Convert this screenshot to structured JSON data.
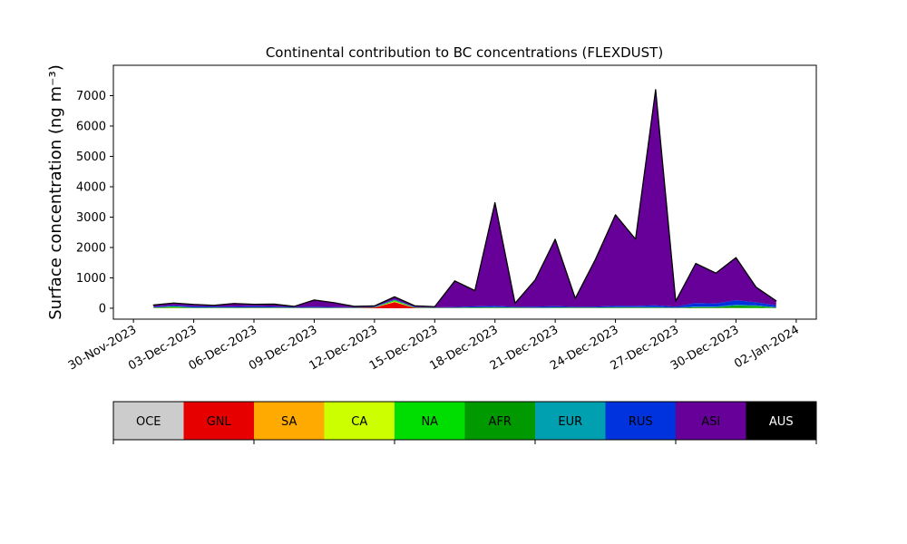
{
  "chart_data": {
    "type": "stacked_area",
    "title": "Continental contribution to BC concentrations (FLEXDUST)",
    "y_label": "Surface concentration (ng m⁻³)",
    "x": [
      "2023-12-01",
      "2023-12-02",
      "2023-12-03",
      "2023-12-04",
      "2023-12-05",
      "2023-12-06",
      "2023-12-07",
      "2023-12-08",
      "2023-12-09",
      "2023-12-10",
      "2023-12-11",
      "2023-12-12",
      "2023-12-13",
      "2023-12-14",
      "2023-12-15",
      "2023-12-16",
      "2023-12-17",
      "2023-12-18",
      "2023-12-19",
      "2023-12-20",
      "2023-12-21",
      "2023-12-22",
      "2023-12-23",
      "2023-12-24",
      "2023-12-25",
      "2023-12-26",
      "2023-12-27",
      "2023-12-28",
      "2023-12-29",
      "2023-12-30",
      "2023-12-31",
      "2024-01-01"
    ],
    "series": [
      {
        "name": "OCE",
        "color": "#cccccc",
        "values": [
          0,
          0,
          0,
          0,
          0,
          0,
          0,
          0,
          0,
          0,
          0,
          0,
          0,
          0,
          0,
          0,
          0,
          0,
          0,
          0,
          0,
          0,
          0,
          0,
          0,
          0,
          0,
          0,
          0,
          0,
          0,
          0
        ]
      },
      {
        "name": "GNL",
        "color": "#e60000",
        "values": [
          5,
          5,
          5,
          5,
          5,
          10,
          5,
          5,
          5,
          5,
          5,
          20,
          200,
          10,
          5,
          5,
          5,
          5,
          5,
          5,
          5,
          5,
          5,
          5,
          5,
          5,
          5,
          5,
          5,
          5,
          5,
          5
        ]
      },
      {
        "name": "SA",
        "color": "#ffaa00",
        "values": [
          0,
          10,
          0,
          0,
          0,
          0,
          0,
          0,
          0,
          0,
          0,
          0,
          10,
          0,
          0,
          0,
          0,
          0,
          0,
          0,
          0,
          0,
          0,
          0,
          0,
          0,
          0,
          0,
          0,
          0,
          0,
          0
        ]
      },
      {
        "name": "CA",
        "color": "#ccff00",
        "values": [
          0,
          0,
          0,
          0,
          0,
          0,
          0,
          0,
          0,
          0,
          0,
          0,
          20,
          0,
          0,
          0,
          0,
          0,
          0,
          0,
          0,
          0,
          0,
          0,
          0,
          0,
          0,
          0,
          0,
          0,
          0,
          0
        ]
      },
      {
        "name": "NA",
        "color": "#00dd00",
        "values": [
          10,
          30,
          10,
          10,
          10,
          10,
          10,
          5,
          5,
          5,
          5,
          5,
          30,
          10,
          5,
          5,
          10,
          10,
          10,
          5,
          10,
          10,
          10,
          10,
          10,
          10,
          5,
          10,
          10,
          20,
          30,
          10
        ]
      },
      {
        "name": "AFR",
        "color": "#009900",
        "values": [
          5,
          10,
          5,
          5,
          5,
          5,
          5,
          5,
          5,
          5,
          5,
          5,
          10,
          5,
          5,
          5,
          10,
          10,
          5,
          5,
          5,
          5,
          5,
          10,
          10,
          10,
          5,
          20,
          20,
          60,
          40,
          10
        ]
      },
      {
        "name": "EUR",
        "color": "#00a0b0",
        "values": [
          5,
          5,
          5,
          5,
          5,
          5,
          5,
          5,
          5,
          5,
          5,
          5,
          5,
          5,
          5,
          5,
          5,
          10,
          5,
          5,
          10,
          5,
          5,
          10,
          10,
          10,
          5,
          20,
          20,
          30,
          20,
          10
        ]
      },
      {
        "name": "RUS",
        "color": "#0033dd",
        "values": [
          20,
          30,
          40,
          30,
          30,
          40,
          30,
          20,
          30,
          20,
          10,
          10,
          20,
          10,
          10,
          20,
          30,
          40,
          20,
          30,
          40,
          20,
          30,
          40,
          40,
          60,
          30,
          120,
          100,
          150,
          100,
          60
        ]
      },
      {
        "name": "ASI",
        "color": "#660099",
        "values": [
          60,
          80,
          60,
          40,
          100,
          60,
          80,
          20,
          220,
          140,
          30,
          30,
          80,
          40,
          20,
          860,
          520,
          3400,
          120,
          880,
          2200,
          280,
          1550,
          3000,
          2200,
          7100,
          180,
          1300,
          1000,
          1400,
          500,
          150
        ]
      },
      {
        "name": "AUS",
        "color": "#000000",
        "values": [
          0,
          0,
          0,
          0,
          0,
          0,
          0,
          0,
          0,
          0,
          0,
          0,
          0,
          0,
          0,
          0,
          0,
          0,
          0,
          0,
          0,
          0,
          0,
          0,
          0,
          0,
          0,
          0,
          0,
          0,
          0,
          0
        ]
      }
    ],
    "xlim": [
      "2023-11-29",
      "2024-01-03"
    ],
    "xticks": [
      {
        "value": "2023-11-30",
        "label": "30-Nov-2023"
      },
      {
        "value": "2023-12-03",
        "label": "03-Dec-2023"
      },
      {
        "value": "2023-12-06",
        "label": "06-Dec-2023"
      },
      {
        "value": "2023-12-09",
        "label": "09-Dec-2023"
      },
      {
        "value": "2023-12-12",
        "label": "12-Dec-2023"
      },
      {
        "value": "2023-12-15",
        "label": "15-Dec-2023"
      },
      {
        "value": "2023-12-18",
        "label": "18-Dec-2023"
      },
      {
        "value": "2023-12-21",
        "label": "21-Dec-2023"
      },
      {
        "value": "2023-12-24",
        "label": "24-Dec-2023"
      },
      {
        "value": "2023-12-27",
        "label": "27-Dec-2023"
      },
      {
        "value": "2023-12-30",
        "label": "30-Dec-2023"
      },
      {
        "value": "2024-01-02",
        "label": "02-Jan-2024"
      }
    ],
    "ylim": [
      -360,
      8000
    ],
    "yticks": [
      0,
      1000,
      2000,
      3000,
      4000,
      5000,
      6000,
      7000
    ]
  }
}
